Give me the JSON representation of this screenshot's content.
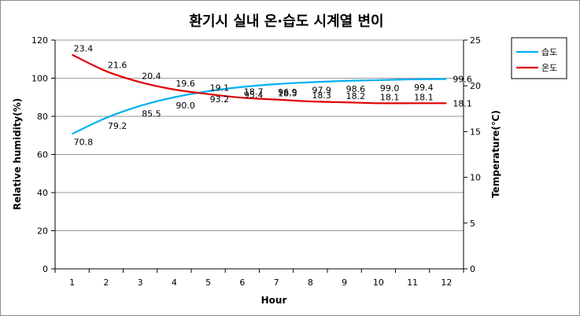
{
  "chart_data": {
    "type": "line",
    "title": "환기시 실내 온·습도 시계열 변이",
    "xlabel": "Hour",
    "ylabel": "Relative humidity(%)",
    "y2label": "Temperature(℃)",
    "x": [
      1,
      2,
      3,
      4,
      5,
      6,
      7,
      8,
      9,
      10,
      11,
      12
    ],
    "ylim": [
      0,
      120
    ],
    "y2lim": [
      0,
      25
    ],
    "yticks": [
      "0",
      "20",
      "40",
      "60",
      "80",
      "100",
      "120"
    ],
    "y2ticks": [
      "0",
      "5",
      "10",
      "15",
      "20",
      "25"
    ],
    "grid": "horizontal",
    "legend_position": "right",
    "series": [
      {
        "name": "습도",
        "axis": "left",
        "color": "#00b0f0",
        "values": [
          70.8,
          79.2,
          85.5,
          90.0,
          93.2,
          95.4,
          96.9,
          97.9,
          98.6,
          99.0,
          99.4,
          99.6
        ],
        "labels": [
          "70.8",
          "79.2",
          "85.5",
          "90.0",
          "93.2",
          "95.4",
          "96.9",
          "97.9",
          "98.6",
          "99.0",
          "99.4",
          "99.6"
        ]
      },
      {
        "name": "온도",
        "axis": "right",
        "color": "#e00000",
        "values": [
          23.4,
          21.6,
          20.4,
          19.6,
          19.1,
          18.7,
          18.5,
          18.3,
          18.2,
          18.1,
          18.1,
          18.1
        ],
        "labels": [
          "23.4",
          "21.6",
          "20.4",
          "19.6",
          "19.1",
          "18.7",
          "18.5",
          "18.3",
          "18.2",
          "18.1",
          "18.1",
          "18.1"
        ]
      }
    ]
  }
}
